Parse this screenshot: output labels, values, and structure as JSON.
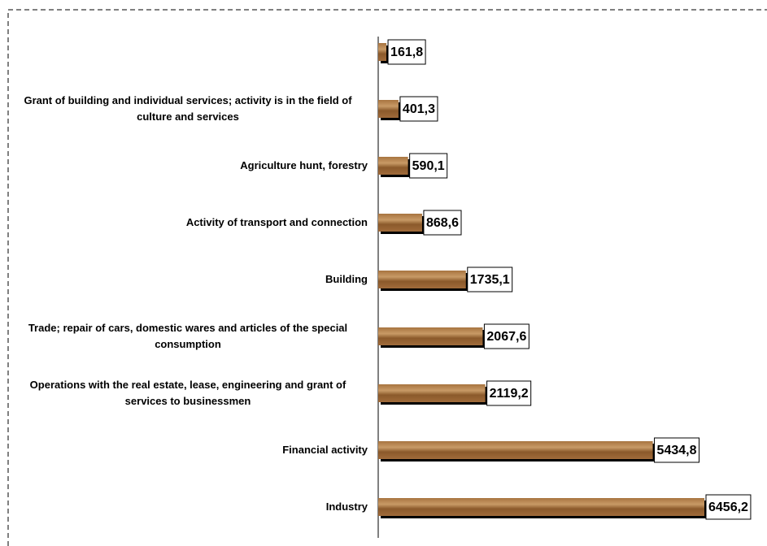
{
  "chart_data": {
    "type": "barh",
    "categories": [
      null,
      "Grant of building and individual services; activity is in the field of culture and services",
      "Agriculture hunt, forestry",
      "Activity of transport and connection",
      "Building",
      "Trade; repair of cars, domestic wares and articles of the special consumption",
      "Operations with the real estate, lease, engineering and grant of services to businessmen",
      "Financial activity",
      "Industry"
    ],
    "values": [
      161.8,
      401.3,
      590.1,
      868.6,
      1735.1,
      2067.6,
      2119.2,
      5434.8,
      6456.2
    ],
    "value_labels": [
      "161,8",
      "401,3",
      "590,1",
      "868,6",
      "1735,1",
      "2067,6",
      "2119,2",
      "5434,8",
      "6456,2"
    ],
    "color": "#8b5a2b"
  }
}
